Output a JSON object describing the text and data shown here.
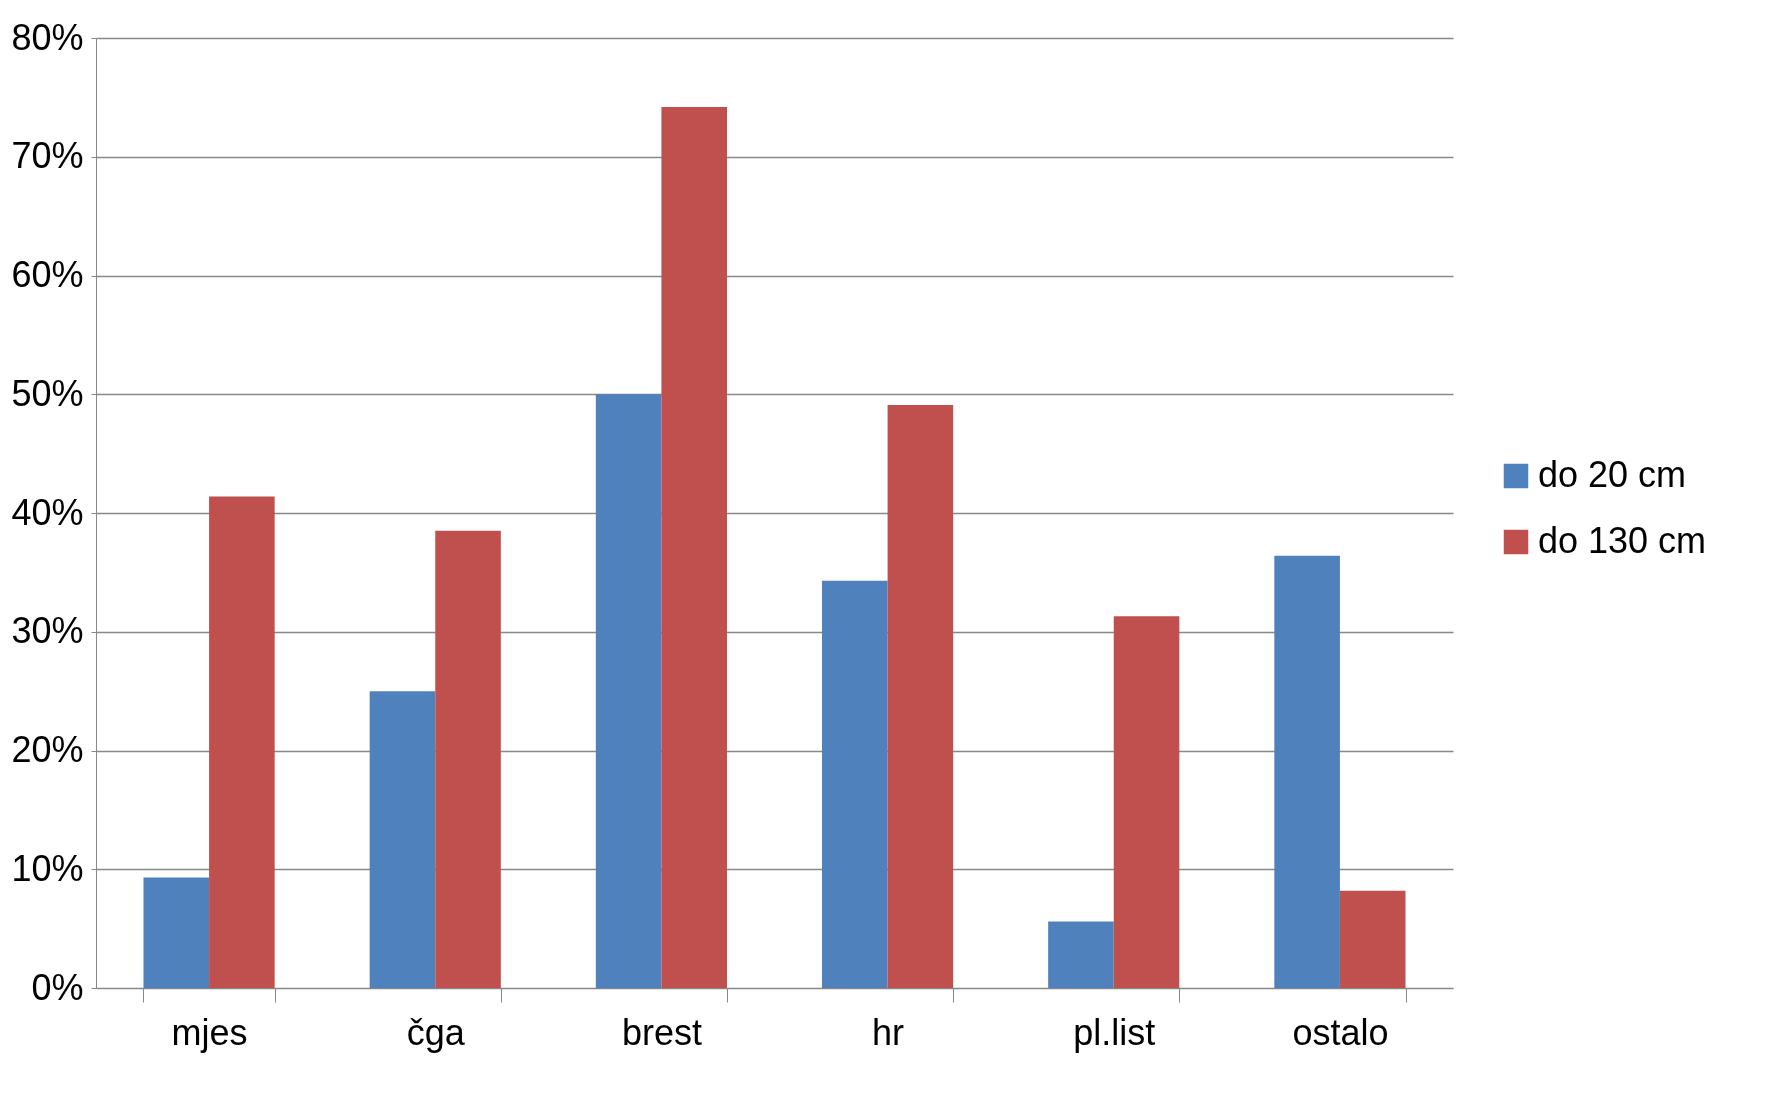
{
  "chart_data": {
    "type": "bar",
    "categories": [
      "mjes",
      "čga",
      "brest",
      "hr",
      "pl.list",
      "ostalo"
    ],
    "series": [
      {
        "name": "do 20 cm",
        "color": "#4f81bd",
        "values": [
          9.3,
          25,
          50,
          34.3,
          5.6,
          36.4
        ]
      },
      {
        "name": "do 130 cm",
        "color": "#c0504d",
        "values": [
          41.4,
          38.5,
          74.2,
          49.1,
          31.3,
          8.2
        ]
      }
    ],
    "ylim": [
      0,
      80
    ],
    "yticks": [
      {
        "value": 0,
        "label": "0%"
      },
      {
        "value": 10,
        "label": "10%"
      },
      {
        "value": 20,
        "label": "20%"
      },
      {
        "value": 30,
        "label": "30%"
      },
      {
        "value": 40,
        "label": "40%"
      },
      {
        "value": 50,
        "label": "50%"
      },
      {
        "value": 60,
        "label": "60%"
      },
      {
        "value": 70,
        "label": "70%"
      },
      {
        "value": 80,
        "label": "80%"
      }
    ],
    "grid": "y",
    "legend": "right"
  }
}
